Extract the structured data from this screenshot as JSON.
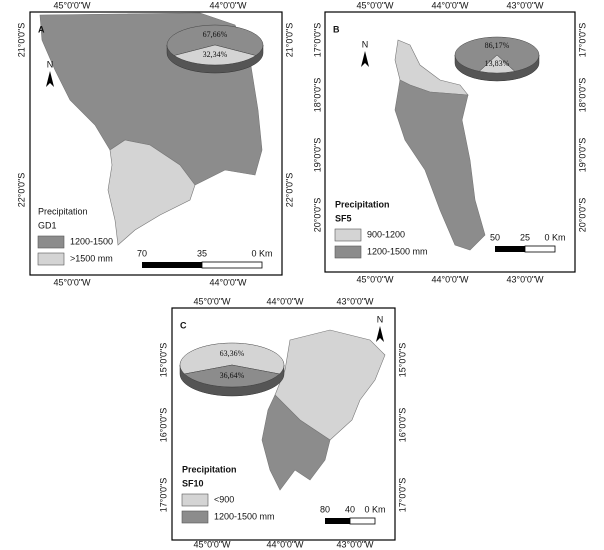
{
  "panels": [
    {
      "letter": "A",
      "top_labels": [
        "45°0'0\"W",
        "44°0'0\"W"
      ],
      "bottom_labels": [
        "45°0'0\"W",
        "44°0'0\"W"
      ],
      "left_labels": [
        "21°0'0\"S",
        "22°0'0\"S"
      ],
      "right_labels": [
        "21°0'0\"S",
        "22°0'0\"S"
      ],
      "north": "N",
      "pie": {
        "values": [
          67.66,
          32.34
        ],
        "value_labels": [
          "67,66%",
          "32,34%"
        ],
        "colors": [
          "#8c8c8c",
          "#d4d4d4"
        ]
      },
      "legend": {
        "title": "Precipitation",
        "subtitle": "GD1",
        "items": [
          {
            "label": "1200-1500",
            "color": "#8c8c8c"
          },
          {
            "label": ">1500 mm",
            "color": "#d4d4d4"
          }
        ]
      },
      "scale": [
        "70",
        "35",
        "0 Km"
      ]
    },
    {
      "letter": "B",
      "top_labels": [
        "45°0'0\"W",
        "44°0'0\"W",
        "43°0'0\"W"
      ],
      "bottom_labels": [
        "45°0'0\"W",
        "44°0'0\"W",
        "43°0'0\"W"
      ],
      "left_labels": [
        "17°0'0\"S",
        "18°0'0\"S",
        "19°0'0\"S",
        "20°0'0\"S"
      ],
      "right_labels": [
        "17°0'0\"S",
        "18°0'0\"S",
        "19°0'0\"S",
        "20°0'0\"S"
      ],
      "north": "N",
      "pie": {
        "values": [
          86.17,
          13.83
        ],
        "value_labels": [
          "86,17%",
          "13,83%"
        ],
        "colors": [
          "#8c8c8c",
          "#d4d4d4"
        ]
      },
      "legend": {
        "title": "Precipitation",
        "subtitle": "SF5",
        "items": [
          {
            "label": "900-1200",
            "color": "#d4d4d4"
          },
          {
            "label": "1200-1500 mm",
            "color": "#8c8c8c"
          }
        ]
      },
      "scale": [
        "50",
        "25",
        "0 Km"
      ]
    },
    {
      "letter": "C",
      "top_labels": [
        "45°0'0\"W",
        "44°0'0\"W",
        "43°0'0\"W"
      ],
      "bottom_labels": [
        "45°0'0\"W",
        "44°0'0\"W",
        "43°0'0\"W"
      ],
      "left_labels": [
        "15°0'0\"S",
        "16°0'0\"S",
        "17°0'0\"S"
      ],
      "right_labels": [
        "15°0'0\"S",
        "16°0'0\"S",
        "17°0'0\"S"
      ],
      "north": "N",
      "pie": {
        "values": [
          63.36,
          36.64
        ],
        "value_labels": [
          "63,36%",
          "36,64%"
        ],
        "colors": [
          "#d4d4d4",
          "#8c8c8c"
        ]
      },
      "legend": {
        "title": "Precipitation",
        "subtitle": "SF10",
        "items": [
          {
            "label": "<900",
            "color": "#d4d4d4"
          },
          {
            "label": "1200-1500 mm",
            "color": "#8c8c8c"
          }
        ]
      },
      "scale": [
        "80",
        "40",
        "0 Km"
      ]
    }
  ]
}
